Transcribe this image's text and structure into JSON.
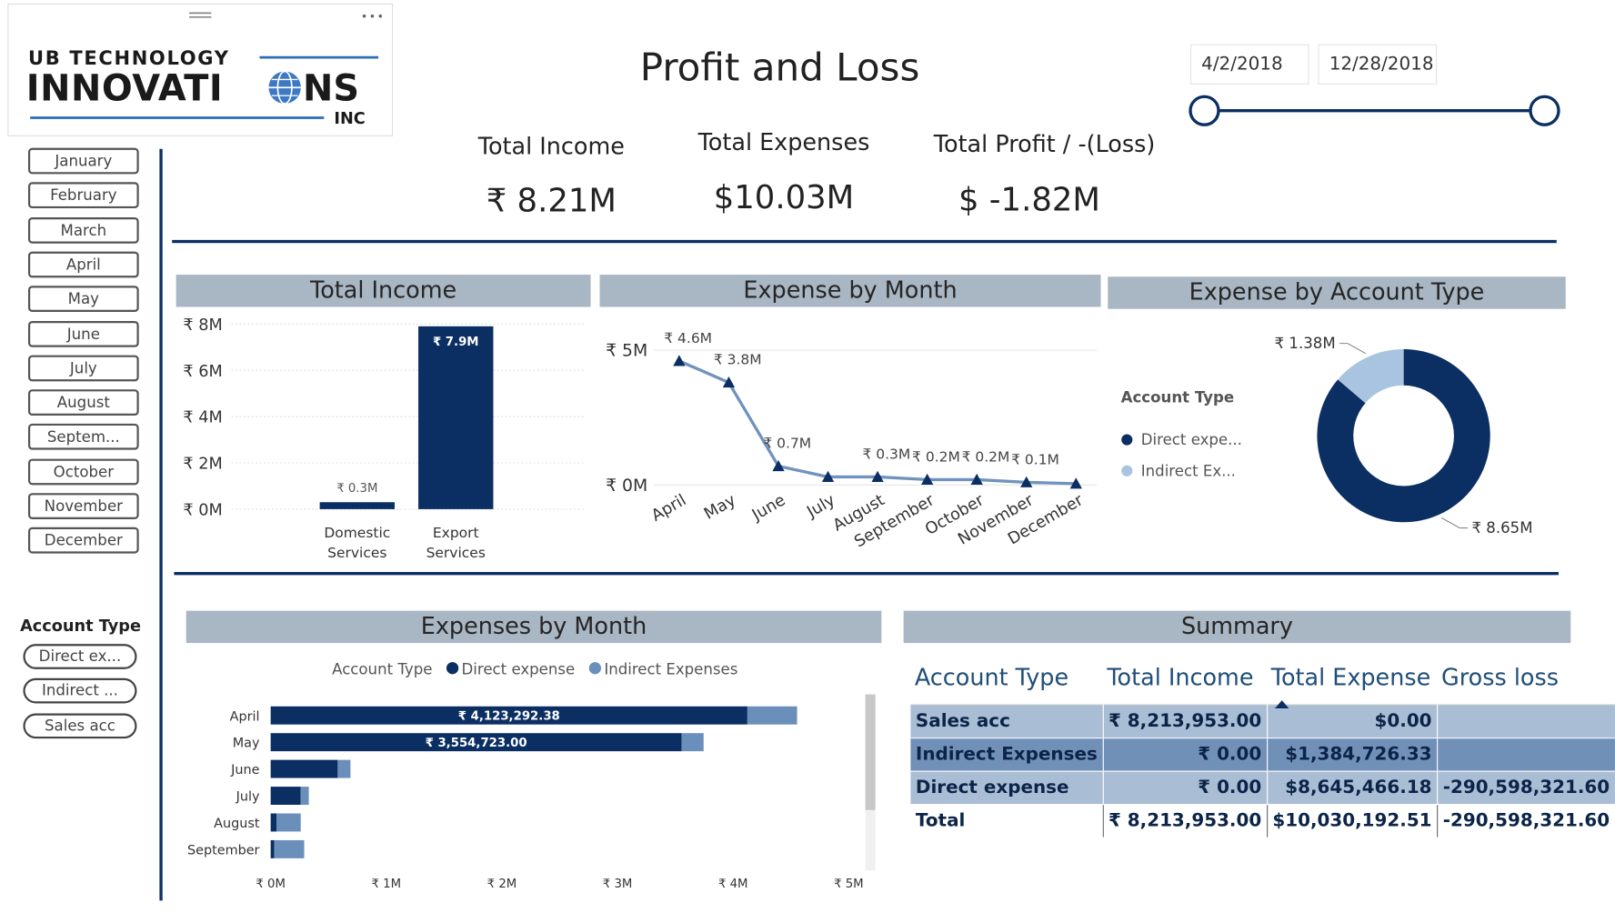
{
  "logo": {
    "line1": "UB TECHNOLOGY",
    "line2a": "INNOVATI",
    "line2b": "NS",
    "line3": "INC"
  },
  "title": "Profit and Loss",
  "date_range": {
    "start": "4/2/2018",
    "end": "12/28/2018"
  },
  "kpis": [
    {
      "label": "Total Income",
      "value": "₹ 8.21M"
    },
    {
      "label": "Total Expenses",
      "value": "$10.03M"
    },
    {
      "label": "Total Profit / -(Loss)",
      "value": "$ -1.82M"
    }
  ],
  "month_slicer": {
    "items": [
      "January",
      "February",
      "March",
      "April",
      "May",
      "June",
      "July",
      "August",
      "Septem...",
      "October",
      "November",
      "December"
    ]
  },
  "account_slicer": {
    "title": "Account Type",
    "items": [
      "Direct ex...",
      "Indirect ...",
      "Sales acc"
    ]
  },
  "chart_data": [
    {
      "type": "bar",
      "title": "Total Income",
      "categories": [
        "Domestic Services",
        "Export Services"
      ],
      "values": [
        0.3,
        7.9
      ],
      "value_labels": [
        "₹ 0.3M",
        "₹ 7.9M"
      ],
      "color": "#0b2f63",
      "ylim": [
        0,
        8
      ],
      "yticks": [
        {
          "value": 0,
          "label": "₹ 0M"
        },
        {
          "value": 2,
          "label": "₹ 2M"
        },
        {
          "value": 4,
          "label": "₹ 4M"
        },
        {
          "value": 6,
          "label": "₹ 6M"
        },
        {
          "value": 8,
          "label": "₹ 8M"
        }
      ],
      "grid": true
    },
    {
      "type": "line",
      "title": "Expense by Month",
      "categories": [
        "April",
        "May",
        "June",
        "July",
        "August",
        "September",
        "October",
        "November",
        "December"
      ],
      "values": [
        4.6,
        3.8,
        0.7,
        0.3,
        0.3,
        0.2,
        0.2,
        0.1,
        0.05
      ],
      "value_labels": [
        "₹ 4.6M",
        "₹ 3.8M",
        "₹ 0.7M",
        null,
        "₹ 0.3M",
        "₹ 0.2M",
        "₹ 0.2M",
        "₹ 0.1M",
        null
      ],
      "color": "#6f93bd",
      "marker_color": "#0b2f63",
      "ylim": [
        0,
        5
      ],
      "yticks": [
        {
          "value": 0,
          "label": "₹ 0M"
        },
        {
          "value": 5,
          "label": "₹ 5M"
        }
      ],
      "grid": true
    },
    {
      "type": "donut",
      "title": "Expense by Account Type",
      "legend_title": "Account Type",
      "categories": [
        "Direct expe...",
        "Indirect Ex..."
      ],
      "values": [
        8.65,
        1.38
      ],
      "value_labels": [
        "₹ 8.65M",
        "₹ 1.38M"
      ],
      "colors": [
        "#0b2f63",
        "#a9c4e0"
      ],
      "legend": "left"
    },
    {
      "type": "bar",
      "orientation": "horizontal",
      "stacked": true,
      "title": "Expenses by Month",
      "legend_title": "Account Type",
      "categories": [
        "April",
        "May",
        "June",
        "July",
        "August",
        "September"
      ],
      "series": [
        {
          "name": "Direct expense",
          "color": "#0b2f63",
          "values": [
            4.12329238,
            3.554723,
            0.58,
            0.26,
            0.05,
            0.03
          ],
          "value_labels": [
            "₹ 4,123,292.38",
            "₹ 3,554,723.00",
            null,
            null,
            null,
            null
          ]
        },
        {
          "name": "Indirect Expenses",
          "color": "#6b8fbb",
          "values": [
            0.43,
            0.19,
            0.11,
            0.07,
            0.21,
            0.26
          ]
        }
      ],
      "xlim": [
        0,
        5.1
      ],
      "xticks": [
        {
          "value": 0,
          "label": "₹ 0M"
        },
        {
          "value": 1,
          "label": "₹ 1M"
        },
        {
          "value": 2,
          "label": "₹ 2M"
        },
        {
          "value": 3,
          "label": "₹ 3M"
        },
        {
          "value": 4,
          "label": "₹ 4M"
        },
        {
          "value": 5,
          "label": "₹ 5M"
        }
      ],
      "grid": false,
      "legend": "top"
    }
  ],
  "summary": {
    "title": "Summary",
    "columns": [
      "Account Type",
      "Total Income",
      "Total Expense",
      "Gross loss"
    ],
    "rows": [
      [
        "Sales acc",
        "₹ 8,213,953.00",
        "$0.00",
        null
      ],
      [
        "Indirect Expenses",
        "₹ 0.00",
        "$1,384,726.33",
        null
      ],
      [
        "Direct expense",
        "₹ 0.00",
        "$8,645,466.18",
        "-290,598,321.60"
      ],
      [
        "Total",
        "₹ 8,213,953.00",
        "$10,030,192.51",
        "-290,598,321.60"
      ]
    ]
  }
}
